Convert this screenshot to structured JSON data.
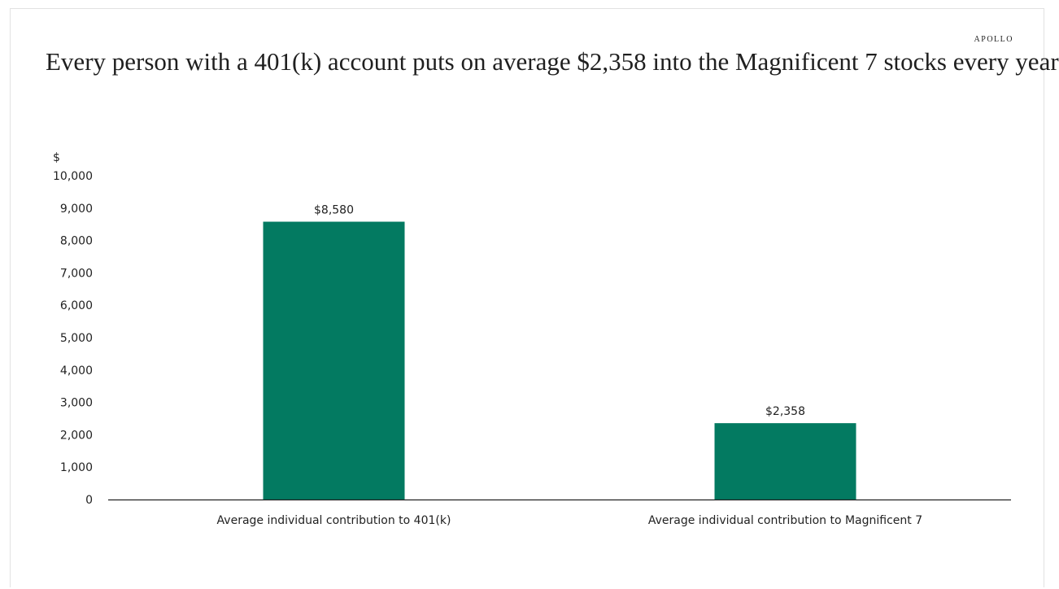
{
  "header": {
    "brand": "APOLLO",
    "title": "Every person with a 401(k) account puts on average $2,358 into the Magnificent 7 stocks every year"
  },
  "chart_data": {
    "type": "bar",
    "title": "Every person with a 401(k) account puts on average $2,358 into the Magnificent 7 stocks every year",
    "ylabel": "$",
    "xlabel": "",
    "ylim": [
      0,
      10000
    ],
    "yticks": [
      "0",
      "1,000",
      "2,000",
      "3,000",
      "4,000",
      "5,000",
      "6,000",
      "7,000",
      "8,000",
      "9,000",
      "10,000"
    ],
    "ytick_values": [
      0,
      1000,
      2000,
      3000,
      4000,
      5000,
      6000,
      7000,
      8000,
      9000,
      10000
    ],
    "categories": [
      "Average individual contribution to 401(k)",
      "Average individual contribution to Magnificent 7"
    ],
    "values": [
      8580,
      2358
    ],
    "data_labels": [
      "$8,580",
      "$2,358"
    ],
    "bar_color": "#037a61",
    "axis_color": "#222222",
    "grid": false,
    "legend": "none"
  }
}
